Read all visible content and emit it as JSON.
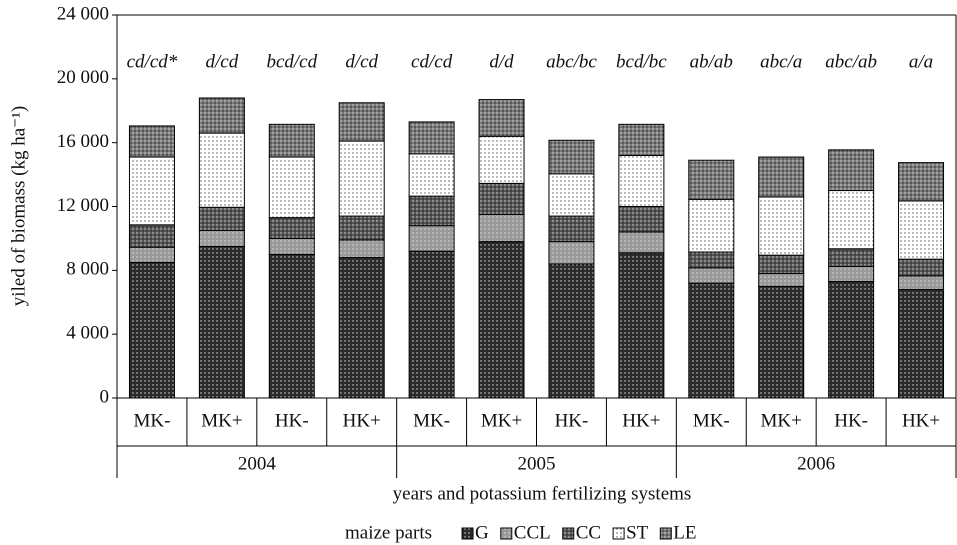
{
  "chart_data": {
    "type": "stacked_bar",
    "y_label": "yiled of biomass (kg ha⁻¹)",
    "x_label": "years and potassium fertilizing systems",
    "legend_title": "maize parts",
    "categories": [
      "MK-",
      "MK+",
      "HK-",
      "HK+",
      "MK-",
      "MK+",
      "HK-",
      "HK+",
      "MK-",
      "MK+",
      "HK-",
      "HK+"
    ],
    "groups": [
      "2004",
      "2005",
      "2006"
    ],
    "annotations": [
      "cd/cd*",
      "d/cd",
      "bcd/cd",
      "d/cd",
      "cd/cd",
      "d/d",
      "abc/bc",
      "bcd/bc",
      "ab/ab",
      "abc/a",
      "abc/ab",
      "a/a"
    ],
    "series": [
      {
        "name": "G",
        "color": "#2b2b2b",
        "values": [
          8500,
          9500,
          9000,
          8800,
          9200,
          9800,
          8400,
          9100,
          7200,
          7000,
          7300,
          6800
        ]
      },
      {
        "name": "CCL",
        "color": "#9a9a9a",
        "values": [
          950,
          1000,
          1000,
          1100,
          1600,
          1700,
          1400,
          1300,
          950,
          800,
          950,
          850
        ]
      },
      {
        "name": "CC",
        "color": "#555555",
        "values": [
          1400,
          1450,
          1300,
          1500,
          1850,
          1950,
          1600,
          1600,
          1000,
          1150,
          1100,
          1050
        ]
      },
      {
        "name": "ST",
        "color": "#ffffff",
        "values": [
          4250,
          4650,
          3800,
          4700,
          2650,
          2950,
          2650,
          3200,
          3300,
          3650,
          3650,
          3650
        ]
      },
      {
        "name": "LE",
        "color": "#7a7a7a",
        "values": [
          1950,
          2200,
          2050,
          2400,
          2000,
          2300,
          2100,
          1950,
          2450,
          2500,
          2550,
          2400
        ]
      }
    ],
    "ylim": [
      0,
      24000
    ],
    "yticks": [
      0,
      {
        "value": 4000,
        "label": "4 000"
      },
      {
        "value": 8000,
        "label": "8 000"
      },
      {
        "value": 12000,
        "label": "12 000"
      },
      {
        "value": 16000,
        "label": "16 000"
      },
      {
        "value": 20000,
        "label": "20 000"
      },
      {
        "value": 24000,
        "label": "24 000"
      }
    ]
  }
}
